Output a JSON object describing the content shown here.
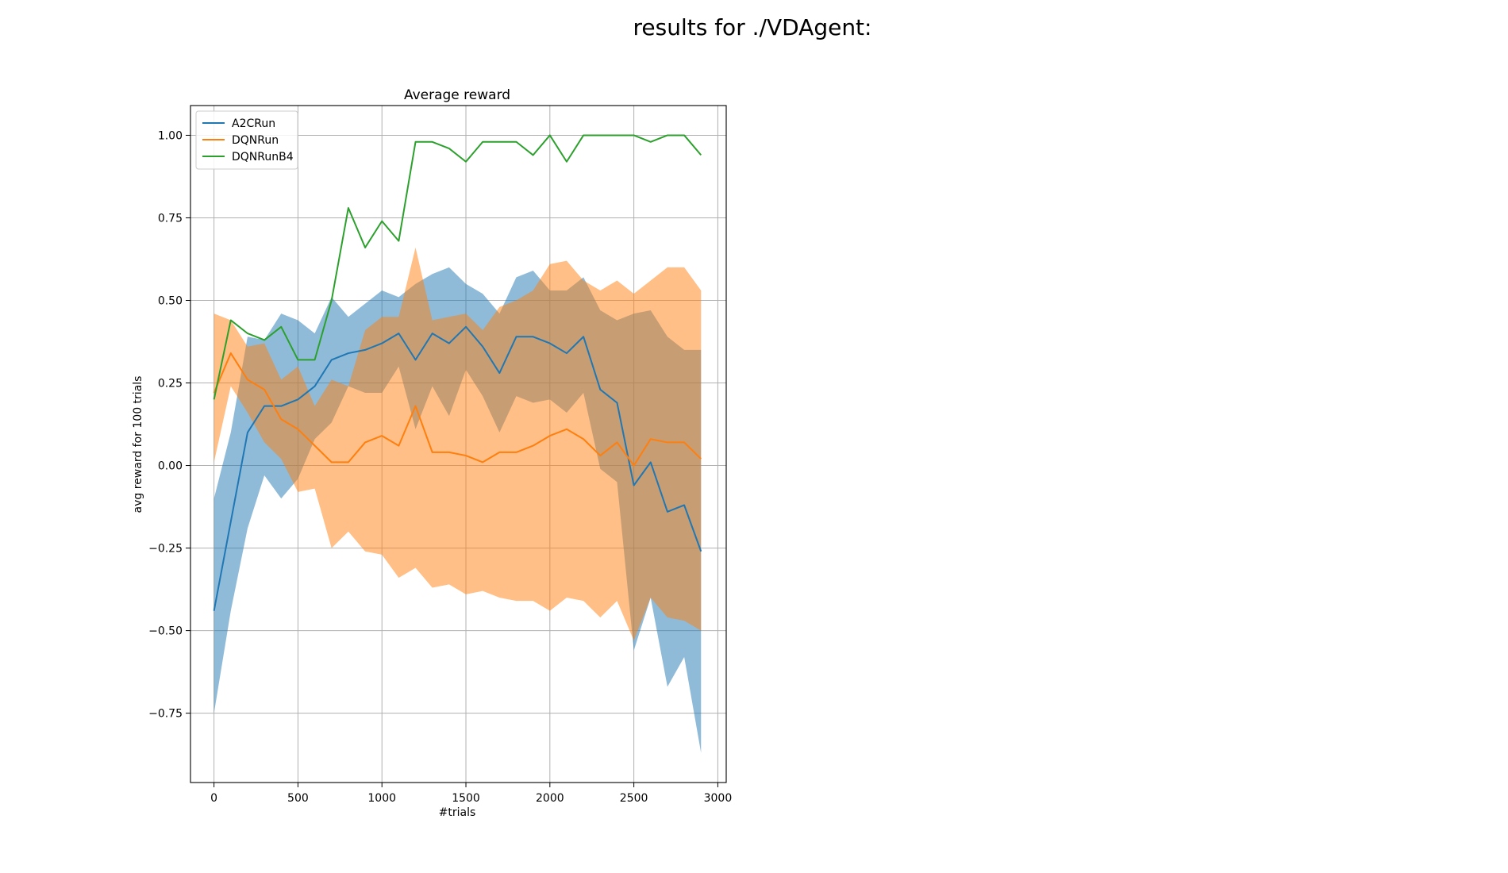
{
  "figure": {
    "suptitle": "results for ./VDAgent:"
  },
  "chart_data": {
    "type": "line",
    "title": "Average reward",
    "xlabel": "#trials",
    "ylabel": "avg reward for 100 trials",
    "xlim": [
      -140,
      3050
    ],
    "ylim": [
      -0.96,
      1.09
    ],
    "xticks": [
      0,
      500,
      1000,
      1500,
      2000,
      2500,
      3000
    ],
    "yticks": [
      -0.75,
      -0.5,
      -0.25,
      0.0,
      0.25,
      0.5,
      0.75,
      1.0
    ],
    "xtick_labels": [
      "0",
      "500",
      "1000",
      "1500",
      "2000",
      "2500",
      "3000"
    ],
    "ytick_labels": [
      "−0.75",
      "−0.50",
      "−0.25",
      "0.00",
      "0.25",
      "0.50",
      "0.75",
      "1.00"
    ],
    "grid": true,
    "legend_position": "top-left",
    "x": [
      0,
      100,
      200,
      300,
      400,
      500,
      600,
      700,
      800,
      900,
      1000,
      1100,
      1200,
      1300,
      1400,
      1500,
      1600,
      1700,
      1800,
      1900,
      2000,
      2100,
      2200,
      2300,
      2400,
      2500,
      2600,
      2700,
      2800,
      2900
    ],
    "series": [
      {
        "name": "A2CRun",
        "color": "#1f77b4",
        "values": [
          -0.44,
          -0.17,
          0.1,
          0.18,
          0.18,
          0.2,
          0.24,
          0.32,
          0.34,
          0.35,
          0.37,
          0.4,
          0.32,
          0.4,
          0.37,
          0.42,
          0.36,
          0.28,
          0.39,
          0.39,
          0.37,
          0.34,
          0.39,
          0.23,
          0.19,
          -0.06,
          0.01,
          -0.14,
          -0.12,
          -0.26
        ],
        "band_upper": [
          -0.1,
          0.1,
          0.39,
          0.38,
          0.46,
          0.44,
          0.4,
          0.51,
          0.45,
          0.49,
          0.53,
          0.51,
          0.55,
          0.58,
          0.6,
          0.55,
          0.52,
          0.46,
          0.57,
          0.59,
          0.53,
          0.53,
          0.57,
          0.47,
          0.44,
          0.46,
          0.47,
          0.39,
          0.35,
          0.35
        ],
        "band_lower": [
          -0.75,
          -0.44,
          -0.19,
          -0.03,
          -0.1,
          -0.04,
          0.08,
          0.13,
          0.24,
          0.22,
          0.22,
          0.3,
          0.11,
          0.24,
          0.15,
          0.29,
          0.21,
          0.1,
          0.21,
          0.19,
          0.2,
          0.16,
          0.22,
          -0.01,
          -0.05,
          -0.56,
          -0.4,
          -0.67,
          -0.58,
          -0.87
        ]
      },
      {
        "name": "DQNRun",
        "color": "#ff7f0e",
        "values": [
          0.22,
          0.34,
          0.26,
          0.23,
          0.14,
          0.11,
          0.06,
          0.01,
          0.01,
          0.07,
          0.09,
          0.06,
          0.18,
          0.04,
          0.04,
          0.03,
          0.01,
          0.04,
          0.04,
          0.06,
          0.09,
          0.11,
          0.08,
          0.03,
          0.07,
          0.0,
          0.08,
          0.07,
          0.07,
          0.02
        ],
        "band_upper": [
          0.46,
          0.44,
          0.36,
          0.37,
          0.26,
          0.3,
          0.18,
          0.26,
          0.24,
          0.41,
          0.45,
          0.45,
          0.66,
          0.44,
          0.45,
          0.46,
          0.41,
          0.48,
          0.5,
          0.53,
          0.61,
          0.62,
          0.56,
          0.53,
          0.56,
          0.52,
          0.56,
          0.6,
          0.6,
          0.53
        ],
        "band_lower": [
          0.01,
          0.24,
          0.16,
          0.07,
          0.02,
          -0.08,
          -0.07,
          -0.25,
          -0.2,
          -0.26,
          -0.27,
          -0.34,
          -0.31,
          -0.37,
          -0.36,
          -0.39,
          -0.38,
          -0.4,
          -0.41,
          -0.41,
          -0.44,
          -0.4,
          -0.41,
          -0.46,
          -0.41,
          -0.53,
          -0.4,
          -0.46,
          -0.47,
          -0.5
        ]
      },
      {
        "name": "DQNRunB4",
        "color": "#2ca02c",
        "values": [
          0.2,
          0.44,
          0.4,
          0.38,
          0.42,
          0.32,
          0.32,
          0.5,
          0.78,
          0.66,
          0.74,
          0.68,
          0.98,
          0.98,
          0.96,
          0.92,
          0.98,
          0.98,
          0.98,
          0.94,
          1.0,
          0.92,
          1.0,
          1.0,
          1.0,
          1.0,
          0.98,
          1.0,
          1.0,
          0.94
        ]
      }
    ]
  }
}
